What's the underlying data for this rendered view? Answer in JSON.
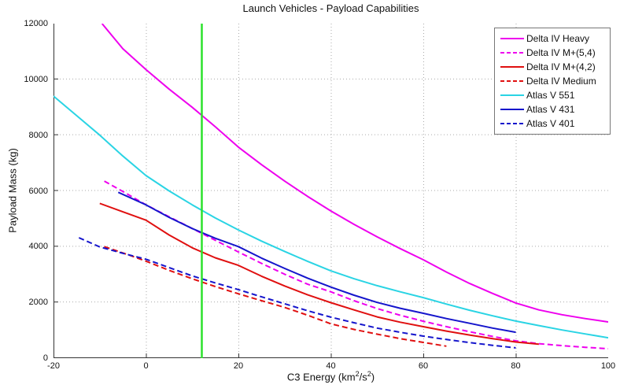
{
  "figure": {
    "title": "Launch Vehicles - Payload Capabilities",
    "ylabel": "Payload Mass (kg)",
    "xlabel_parts": {
      "pre": "C3 Energy (km",
      "sup1": "2",
      "mid": "/s",
      "sup2": "2",
      "post": ")"
    }
  },
  "colors": {
    "grid": "#aaaaaa",
    "axis": "#333333",
    "marker_green": "#2ce22c",
    "magenta": "#ee00ee",
    "red": "#e01010",
    "cyan": "#2ad4e4",
    "blue": "#1515cc"
  },
  "chart_data": {
    "type": "line",
    "title": "Launch Vehicles - Payload Capabilities",
    "xlabel": "C3 Energy (km2/s2)",
    "ylabel": "Payload Mass (kg)",
    "xlim": [
      -20,
      100
    ],
    "ylim": [
      0,
      12000
    ],
    "xticks": [
      -20,
      0,
      20,
      40,
      60,
      80,
      100
    ],
    "yticks": [
      0,
      2000,
      4000,
      6000,
      8000,
      10000,
      12000
    ],
    "grid": true,
    "legend_position": "top-right",
    "annotations": [
      {
        "type": "vline",
        "x": 12,
        "color": "#2ce22c",
        "width": 2.5
      }
    ],
    "series": [
      {
        "name": "Delta IV Heavy",
        "color": "#ee00ee",
        "style": "solid",
        "width": 2,
        "points": [
          [
            -9.5,
            12000
          ],
          [
            -5,
            11100
          ],
          [
            0,
            10350
          ],
          [
            5,
            9650
          ],
          [
            10,
            9000
          ],
          [
            15,
            8300
          ],
          [
            20,
            7570
          ],
          [
            25,
            6940
          ],
          [
            30,
            6350
          ],
          [
            35,
            5800
          ],
          [
            40,
            5280
          ],
          [
            45,
            4800
          ],
          [
            50,
            4350
          ],
          [
            55,
            3930
          ],
          [
            60,
            3530
          ],
          [
            65,
            3090
          ],
          [
            70,
            2680
          ],
          [
            75,
            2320
          ],
          [
            80,
            1980
          ],
          [
            85,
            1730
          ],
          [
            90,
            1560
          ],
          [
            95,
            1420
          ],
          [
            100,
            1300
          ]
        ]
      },
      {
        "name": "Delta IV M+(5,4)",
        "color": "#ee00ee",
        "style": "dashed",
        "width": 2,
        "points": [
          [
            -9,
            6350
          ],
          [
            -5,
            5980
          ],
          [
            0,
            5500
          ],
          [
            5,
            5070
          ],
          [
            10,
            4650
          ],
          [
            15,
            4230
          ],
          [
            20,
            3810
          ],
          [
            25,
            3400
          ],
          [
            30,
            3010
          ],
          [
            35,
            2650
          ],
          [
            40,
            2380
          ],
          [
            45,
            2060
          ],
          [
            50,
            1780
          ],
          [
            55,
            1540
          ],
          [
            60,
            1325
          ],
          [
            65,
            1130
          ],
          [
            70,
            950
          ],
          [
            75,
            780
          ],
          [
            80,
            620
          ],
          [
            85,
            520
          ],
          [
            90,
            450
          ],
          [
            95,
            390
          ],
          [
            100,
            340
          ]
        ]
      },
      {
        "name": "Delta IV M+(4,2)",
        "color": "#e01010",
        "style": "solid",
        "width": 2,
        "points": [
          [
            -10,
            5550
          ],
          [
            -5,
            5250
          ],
          [
            0,
            4950
          ],
          [
            5,
            4420
          ],
          [
            10,
            3960
          ],
          [
            15,
            3600
          ],
          [
            20,
            3330
          ],
          [
            25,
            2940
          ],
          [
            30,
            2590
          ],
          [
            35,
            2270
          ],
          [
            40,
            1990
          ],
          [
            45,
            1730
          ],
          [
            50,
            1480
          ],
          [
            55,
            1290
          ],
          [
            60,
            1130
          ],
          [
            65,
            970
          ],
          [
            70,
            830
          ],
          [
            75,
            700
          ],
          [
            80,
            580
          ],
          [
            85,
            500
          ]
        ]
      },
      {
        "name": "Delta IV Medium",
        "color": "#e01010",
        "style": "dashed",
        "width": 2,
        "points": [
          [
            -9,
            4000
          ],
          [
            -4,
            3720
          ],
          [
            0,
            3480
          ],
          [
            5,
            3150
          ],
          [
            10,
            2850
          ],
          [
            15,
            2570
          ],
          [
            20,
            2310
          ],
          [
            25,
            2060
          ],
          [
            30,
            1820
          ],
          [
            35,
            1540
          ],
          [
            40,
            1230
          ],
          [
            45,
            1030
          ],
          [
            50,
            860
          ],
          [
            55,
            700
          ],
          [
            60,
            565
          ],
          [
            65,
            430
          ]
        ]
      },
      {
        "name": "Atlas V 551",
        "color": "#2ad4e4",
        "style": "solid",
        "width": 2,
        "points": [
          [
            -20,
            9400
          ],
          [
            -15,
            8700
          ],
          [
            -10,
            8000
          ],
          [
            -5,
            7250
          ],
          [
            0,
            6550
          ],
          [
            5,
            6000
          ],
          [
            10,
            5500
          ],
          [
            15,
            5030
          ],
          [
            20,
            4600
          ],
          [
            25,
            4200
          ],
          [
            30,
            3830
          ],
          [
            35,
            3470
          ],
          [
            40,
            3130
          ],
          [
            45,
            2850
          ],
          [
            50,
            2600
          ],
          [
            55,
            2380
          ],
          [
            60,
            2170
          ],
          [
            65,
            1940
          ],
          [
            70,
            1720
          ],
          [
            75,
            1520
          ],
          [
            80,
            1330
          ],
          [
            85,
            1170
          ],
          [
            90,
            1010
          ],
          [
            95,
            870
          ],
          [
            100,
            730
          ]
        ]
      },
      {
        "name": "Atlas V 431",
        "color": "#1515cc",
        "style": "solid",
        "width": 2,
        "points": [
          [
            -6,
            5950
          ],
          [
            0,
            5500
          ],
          [
            5,
            5050
          ],
          [
            10,
            4650
          ],
          [
            15,
            4300
          ],
          [
            20,
            4000
          ],
          [
            25,
            3590
          ],
          [
            30,
            3220
          ],
          [
            35,
            2870
          ],
          [
            40,
            2550
          ],
          [
            45,
            2260
          ],
          [
            50,
            2000
          ],
          [
            55,
            1790
          ],
          [
            60,
            1610
          ],
          [
            65,
            1420
          ],
          [
            70,
            1250
          ],
          [
            75,
            1080
          ],
          [
            80,
            930
          ]
        ]
      },
      {
        "name": "Atlas V 401",
        "color": "#1515cc",
        "style": "dashed",
        "width": 2,
        "points": [
          [
            -14.5,
            4320
          ],
          [
            -10,
            3990
          ],
          [
            -5,
            3760
          ],
          [
            0,
            3550
          ],
          [
            5,
            3250
          ],
          [
            10,
            2950
          ],
          [
            15,
            2700
          ],
          [
            20,
            2460
          ],
          [
            25,
            2200
          ],
          [
            30,
            1950
          ],
          [
            35,
            1700
          ],
          [
            40,
            1470
          ],
          [
            45,
            1270
          ],
          [
            50,
            1080
          ],
          [
            55,
            930
          ],
          [
            60,
            790
          ],
          [
            65,
            670
          ],
          [
            70,
            560
          ],
          [
            75,
            460
          ],
          [
            80,
            370
          ]
        ]
      }
    ]
  }
}
